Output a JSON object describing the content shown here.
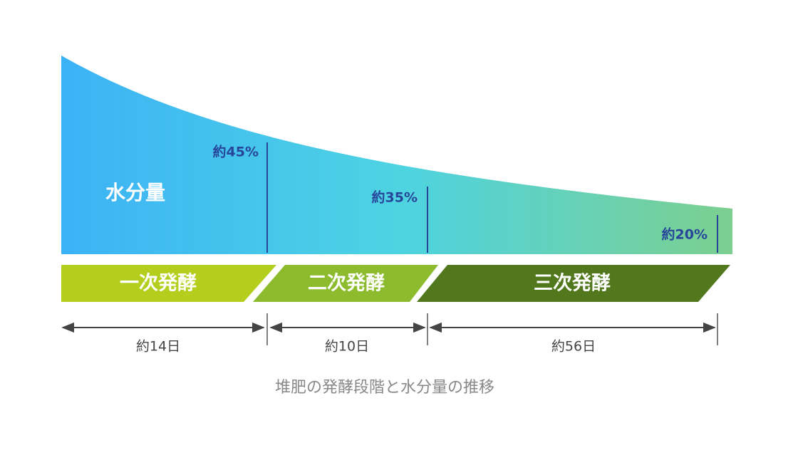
{
  "curve": {
    "label": "水分量"
  },
  "markers": [
    {
      "label": "約45%"
    },
    {
      "label": "約35%"
    },
    {
      "label": "約20%"
    }
  ],
  "stages": [
    {
      "label": "一次発酵"
    },
    {
      "label": "二次発酵"
    },
    {
      "label": "三次発酵"
    }
  ],
  "durations": [
    {
      "label": "約14日"
    },
    {
      "label": "約10日"
    },
    {
      "label": "約56日"
    }
  ],
  "caption": "堆肥の発酵段階と水分量の推移"
}
